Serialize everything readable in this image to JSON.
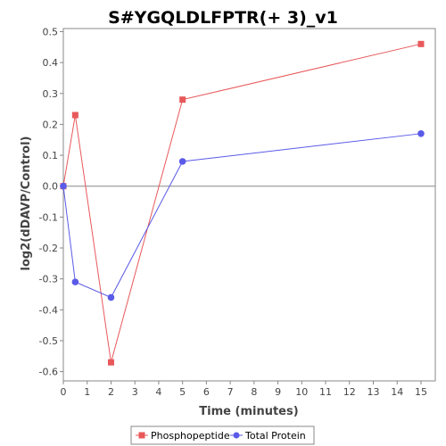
{
  "chart_data": {
    "type": "line",
    "title": "S#YGQLDLFPTR(+ 3)_v1",
    "xlabel": "Time (minutes)",
    "ylabel": "log2(dDAVP/Control)",
    "xlim": [
      0,
      15.6
    ],
    "ylim": [
      -0.63,
      0.51
    ],
    "x_ticks": [
      0,
      1,
      2,
      3,
      4,
      5,
      6,
      7,
      8,
      9,
      10,
      11,
      12,
      13,
      14,
      15
    ],
    "y_ticks": [
      -0.6,
      -0.5,
      -0.4,
      -0.3,
      -0.2,
      -0.1,
      0.0,
      0.1,
      0.2,
      0.3,
      0.4,
      0.5
    ],
    "y_tick_labels": [
      "-0.6",
      "-0.5",
      "-0.4",
      "-0.3",
      "-0.2",
      "-0.1",
      "0.0",
      "0.1",
      "0.2",
      "0.3",
      "0.4",
      "0.5"
    ],
    "zero_line": true,
    "grid": false,
    "legend_position": "bottom",
    "series": [
      {
        "name": "Phosphopeptide",
        "color": "#e8585a",
        "marker": "square",
        "x": [
          0,
          0.5,
          2,
          5,
          15
        ],
        "y": [
          0.0,
          0.23,
          -0.57,
          0.28,
          0.46
        ]
      },
      {
        "name": "Total Protein",
        "color": "#5a5ae8",
        "marker": "circle",
        "x": [
          0,
          0.5,
          2,
          5,
          15
        ],
        "y": [
          0.0,
          -0.31,
          -0.36,
          0.08,
          0.17
        ]
      }
    ]
  }
}
